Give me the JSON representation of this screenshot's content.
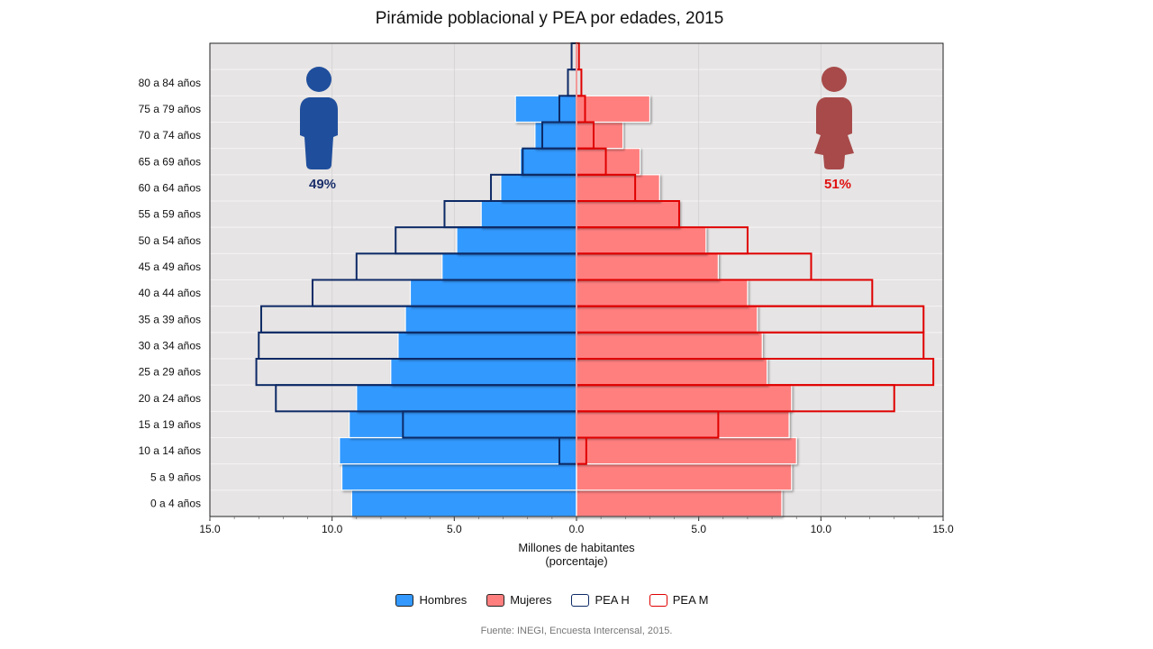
{
  "chart_data": {
    "type": "bar",
    "orientation": "horizontal-population-pyramid",
    "title": "Pirámide poblacional y PEA por edades, 2015",
    "xlabel_line1": "Millones de habitantes",
    "xlabel_line2": "(porcentaje)",
    "xlim": [
      -15,
      15
    ],
    "x_ticks": [
      "15.0",
      "10.0",
      "5.0",
      "0.0",
      "5.0",
      "10.0",
      "15.0"
    ],
    "categories": [
      "0 a 4 años",
      "5 a 9 años",
      "10 a 14 años",
      "15 a 19 años",
      "20 a 24 años",
      "25 a 29 años",
      "30 a 34 años",
      "35 a 39 años",
      "40 a 44 años",
      "45 a 49 años",
      "50 a 54 años",
      "55 a 59 años",
      "60 a 64 años",
      "65 a 69 años",
      "70 a 74 años",
      "75 a 79 años",
      "80 a 84 años",
      ""
    ],
    "series": [
      {
        "name": "Hombres",
        "color": "#3399ff",
        "values": [
          9.2,
          9.6,
          9.7,
          9.3,
          9.0,
          7.6,
          7.3,
          7.0,
          6.8,
          5.5,
          4.9,
          3.9,
          3.1,
          2.3,
          1.7,
          2.5,
          0,
          0
        ]
      },
      {
        "name": "Mujeres",
        "color": "#ff7f7f",
        "values": [
          8.4,
          8.8,
          9.0,
          8.7,
          8.8,
          7.8,
          7.6,
          7.4,
          7.0,
          5.8,
          5.3,
          4.2,
          3.4,
          2.6,
          1.9,
          3.0,
          0,
          0
        ]
      },
      {
        "name": "PEA H",
        "color": "#0d2a66",
        "values": [
          0,
          0,
          0.7,
          7.1,
          12.3,
          13.1,
          13.0,
          12.9,
          10.8,
          9.0,
          7.4,
          5.4,
          3.5,
          2.2,
          1.4,
          0.7,
          0.35,
          0.2
        ]
      },
      {
        "name": "PEA M",
        "color": "#e00000",
        "values": [
          0,
          0,
          0.4,
          5.8,
          13.0,
          14.6,
          14.2,
          14.2,
          12.1,
          9.6,
          7.0,
          4.2,
          2.4,
          1.2,
          0.7,
          0.35,
          0.2,
          0.1
        ]
      }
    ],
    "annotations": {
      "male_pct": "49%",
      "female_pct": "51%"
    },
    "grid": true,
    "legend_position": "bottom",
    "source": "Fuente: INEGI, Encuesta Intercensal, 2015."
  }
}
